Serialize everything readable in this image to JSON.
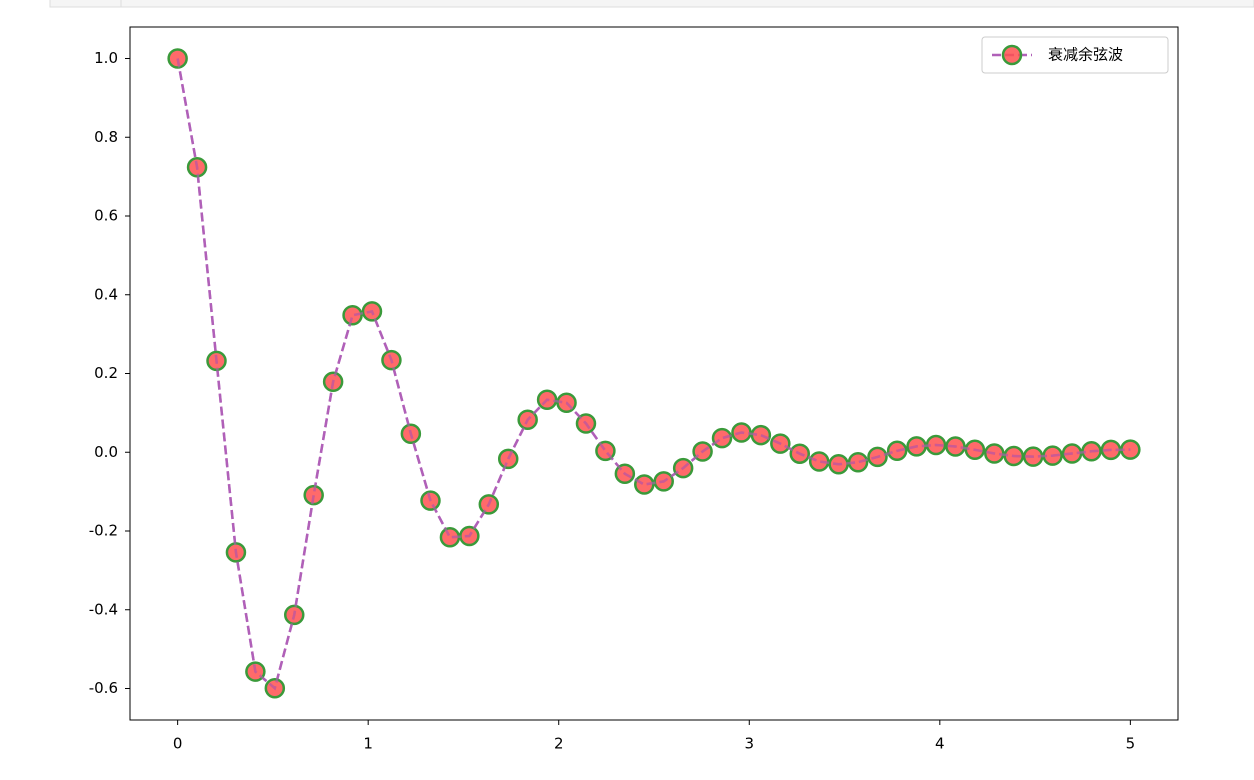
{
  "chart_data": {
    "type": "line",
    "x": [
      0,
      0.102,
      0.204,
      0.306,
      0.408,
      0.51,
      0.612,
      0.714,
      0.816,
      0.918,
      1.02,
      1.122,
      1.224,
      1.327,
      1.429,
      1.531,
      1.633,
      1.735,
      1.837,
      1.939,
      2.041,
      2.143,
      2.245,
      2.347,
      2.449,
      2.551,
      2.653,
      2.755,
      2.857,
      2.959,
      3.061,
      3.163,
      3.265,
      3.367,
      3.469,
      3.571,
      3.673,
      3.776,
      3.878,
      3.98,
      4.082,
      4.184,
      4.286,
      4.388,
      4.49,
      4.592,
      4.694,
      4.796,
      4.898,
      5
    ],
    "series": [
      {
        "name": "衰减余弦波",
        "color": "#b060b8",
        "marker_fill": "#ff5050",
        "marker_edge": "#3a9a3a",
        "values": [
          1.0,
          0.7237,
          0.232,
          -0.2542,
          -0.5572,
          -0.5993,
          -0.413,
          -0.1089,
          0.1789,
          0.3479,
          0.3577,
          0.2339,
          0.047,
          -0.1229,
          -0.216,
          -0.2127,
          -0.1324,
          -0.0169,
          0.0826,
          0.1334,
          0.1257,
          0.0731,
          0.0034,
          -0.0547,
          -0.082,
          -0.074,
          -0.0403,
          0.002,
          0.0358,
          0.0502,
          0.0434,
          0.0219,
          -0.0037,
          -0.0234,
          -0.0306,
          -0.0253,
          -0.0118,
          0.0037,
          0.0149,
          0.0185,
          0.0147,
          0.0062,
          -0.0031,
          -0.0095,
          -0.0112,
          -0.0085,
          -0.0031,
          0.0024,
          0.006,
          0.0067
        ]
      }
    ],
    "xlim": [
      -0.25,
      5.25
    ],
    "ylim": [
      -0.68,
      1.08
    ],
    "xticks": [
      0,
      1,
      2,
      3,
      4,
      5
    ],
    "yticks": [
      {
        "value": 1,
        "label": "1.0"
      },
      0.8,
      0.6,
      0.4,
      0.2,
      {
        "value": 0,
        "label": "0.0"
      },
      -0.2,
      -0.4,
      -0.6
    ],
    "legend": "upper right"
  }
}
